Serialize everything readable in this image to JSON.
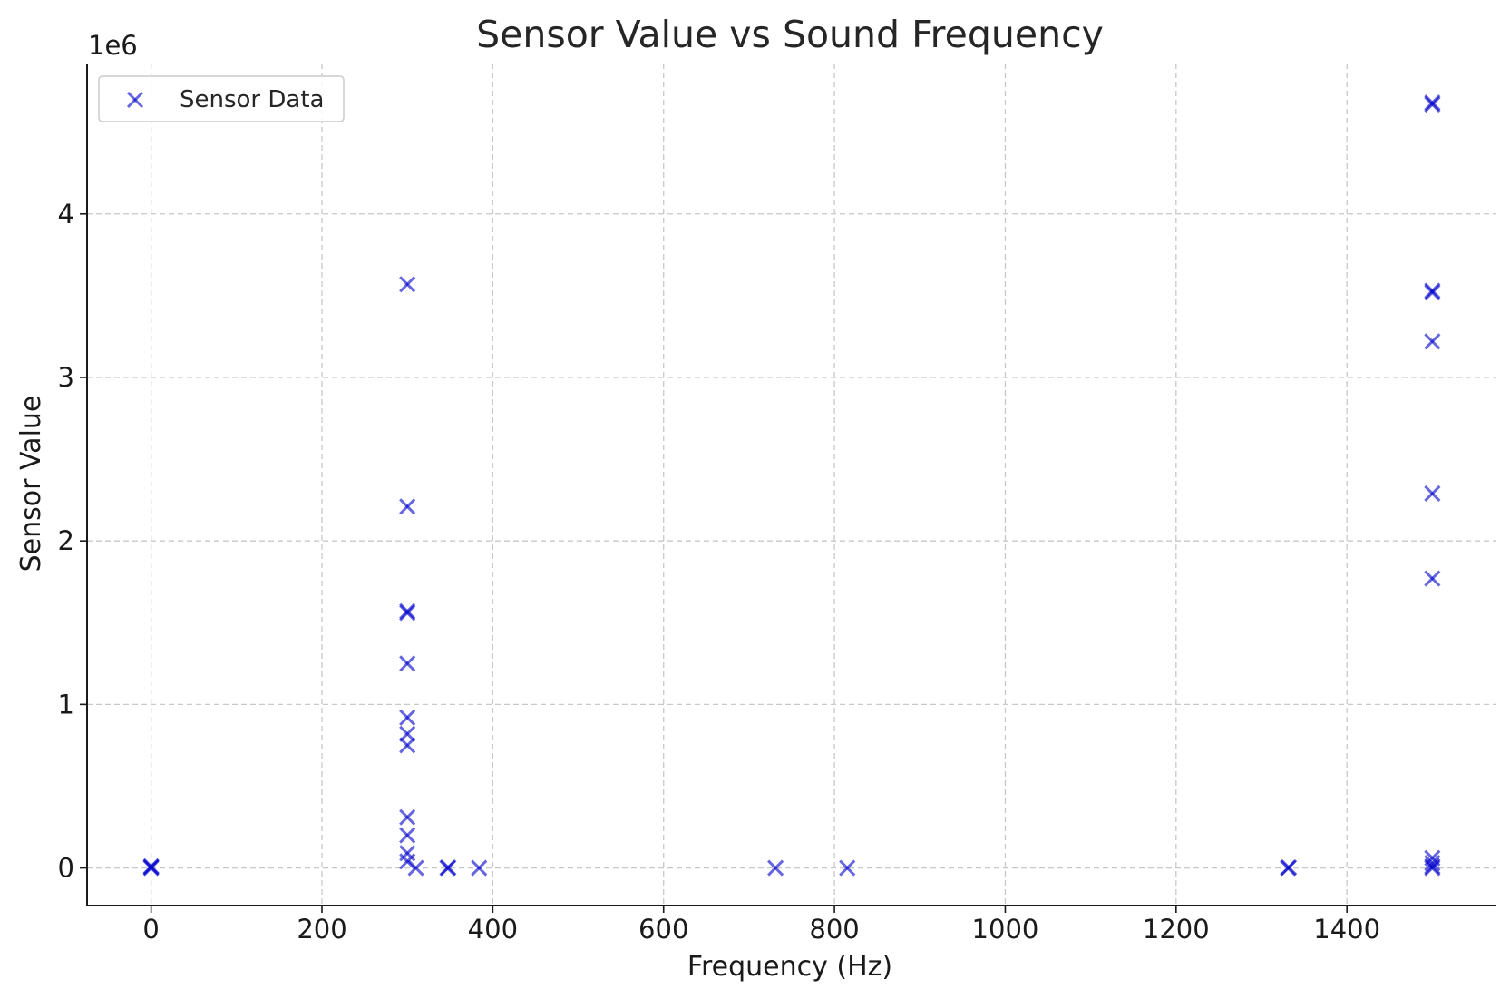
{
  "chart_data": {
    "type": "scatter",
    "title": "Sensor Value vs Sound Frequency",
    "xlabel": "Frequency (Hz)",
    "ylabel": "Sensor Value",
    "y_offset_text": "1e6",
    "xlim": [
      -75,
      1575
    ],
    "ylim": [
      -230000,
      4920000
    ],
    "xticks": [
      0,
      200,
      400,
      600,
      800,
      1000,
      1200,
      1400
    ],
    "xtick_labels": [
      "0",
      "200",
      "400",
      "600",
      "800",
      "1000",
      "1200",
      "1400"
    ],
    "yticks": [
      0,
      1000000,
      2000000,
      3000000,
      4000000
    ],
    "ytick_labels": [
      "0",
      "1",
      "2",
      "3",
      "4"
    ],
    "grid": true,
    "legend_placement": "top-left",
    "marker": "x",
    "series": [
      {
        "name": "Sensor Data",
        "color": "#0000cc",
        "points": [
          {
            "x": 0,
            "y": 0
          },
          {
            "x": 0,
            "y": 5000
          },
          {
            "x": 0,
            "y": 10000
          },
          {
            "x": 300,
            "y": 3570000
          },
          {
            "x": 300,
            "y": 2210000
          },
          {
            "x": 300,
            "y": 1570000
          },
          {
            "x": 300,
            "y": 1560000
          },
          {
            "x": 300,
            "y": 1250000
          },
          {
            "x": 300,
            "y": 920000
          },
          {
            "x": 300,
            "y": 820000
          },
          {
            "x": 300,
            "y": 750000
          },
          {
            "x": 300,
            "y": 310000
          },
          {
            "x": 300,
            "y": 200000
          },
          {
            "x": 300,
            "y": 90000
          },
          {
            "x": 300,
            "y": 40000
          },
          {
            "x": 310,
            "y": 0
          },
          {
            "x": 347,
            "y": 0
          },
          {
            "x": 348,
            "y": 2000
          },
          {
            "x": 384,
            "y": 0
          },
          {
            "x": 731,
            "y": 0
          },
          {
            "x": 815,
            "y": 0
          },
          {
            "x": 1331,
            "y": 0
          },
          {
            "x": 1332,
            "y": 3000
          },
          {
            "x": 1500,
            "y": 4680000
          },
          {
            "x": 1500,
            "y": 4670000
          },
          {
            "x": 1500,
            "y": 3530000
          },
          {
            "x": 1500,
            "y": 3520000
          },
          {
            "x": 1500,
            "y": 3220000
          },
          {
            "x": 1500,
            "y": 2290000
          },
          {
            "x": 1500,
            "y": 1770000
          },
          {
            "x": 1500,
            "y": 60000
          },
          {
            "x": 1500,
            "y": 30000
          },
          {
            "x": 1500,
            "y": 10000
          },
          {
            "x": 1500,
            "y": 0
          }
        ]
      }
    ]
  }
}
